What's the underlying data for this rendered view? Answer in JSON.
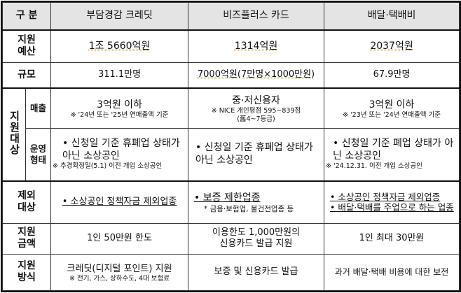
{
  "header": {
    "category": "구 분",
    "col1": "부담경감 크레딧",
    "col2": "비즈플러스 카드",
    "col3": "배달·택배비"
  },
  "rows": {
    "budget": {
      "label": "지원\n예산",
      "col1": "1조 5660억원",
      "col2": "1314억원",
      "col3": "2037억원"
    },
    "scale": {
      "label": "규모",
      "col1": "311.1만명",
      "col2": "7000억원(7만명×1000만원)",
      "col3": "67.9만명"
    },
    "target": {
      "label": "지원대상",
      "sales": {
        "label": "매출",
        "col1": "3억원 이하",
        "col1_note": "※ '24년 또는 '25년 연매출액 기준",
        "col2": "중·저신용자",
        "col2_note": "※ NICE 개인평점 595~839점",
        "col2_note2": "(舊4~7등급)",
        "col3": "3억원 이하",
        "col3_note": "※ '23년 또는 '24년 연매출액 기준"
      },
      "operation": {
        "label": "운영\n형태",
        "col1": "• 신청일 기준 휴폐업 상태가 아닌 소상공인",
        "col1_note": "※ 추경확정일(5.1) 이전 개업 소상공인",
        "col2": "• 신청일 기준 휴폐업 상태가 아닌 소상공인",
        "col3": "• 신청일 기준 폐업 상태가 아닌 소상공인",
        "col3_note": "※ '24.12.31. 이전 개업 소상공인"
      }
    },
    "excluded": {
      "label": "제외\n대상",
      "col1": "• 소상공인 정책자금 제외업종",
      "col2": "• 보증 제한업종",
      "col2_note": "* 금융·보험업, 불건전업종 등",
      "col3": "• 소상공인 정책자금 제외업종",
      "col3_b": "• 배달·택배를 주업으로 하는 업종"
    },
    "amount": {
      "label": "지원\n금액",
      "col1": "1인 50만원 한도",
      "col2": "이용한도 1,000만원의 신용카드 발급 지원",
      "col3": "1인 최대 30만원"
    },
    "method": {
      "label": "지원\n방식",
      "col1": "크레딧(디지털 포인트) 지원",
      "col1_note": "※ 전기, 가스, 상하수도, 4대 보험료",
      "col2": "보증 및 신용카드 발급",
      "col3": "과거 배달·택배 비용에 대한 보전"
    }
  }
}
